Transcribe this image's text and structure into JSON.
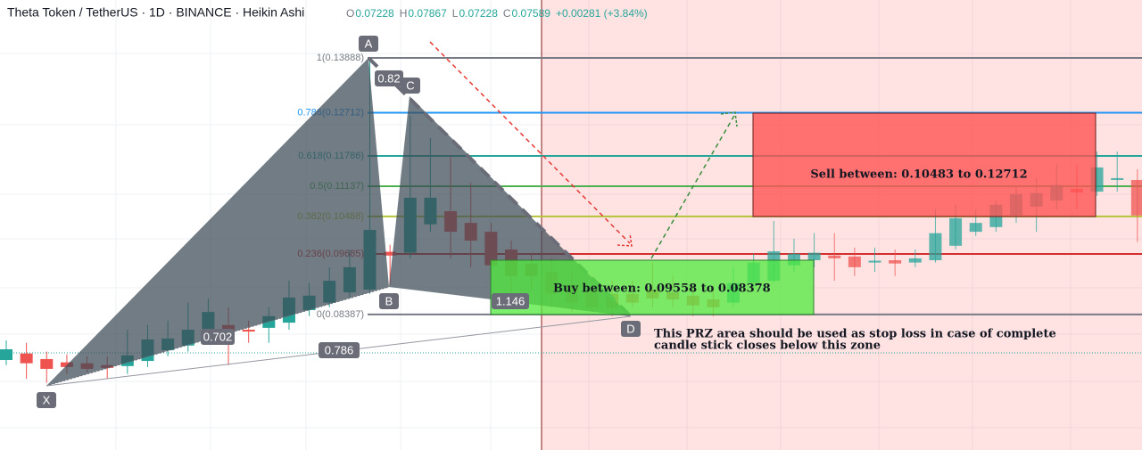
{
  "chart_data": {
    "type": "candlestick",
    "title": "Theta Token / TetherUS · 1D · BINANCE · Heikin Ashi",
    "legend_values": [
      {
        "key": "O",
        "value": "0.07228"
      },
      {
        "key": "H",
        "value": "0.07867"
      },
      {
        "key": "L",
        "value": "0.07228"
      },
      {
        "key": "C",
        "value": "0.07589"
      }
    ],
    "change": "+0.00281 (+3.84%)",
    "up_color": "#26a69a",
    "down_color": "#ef5350",
    "ylim": [
      0.0548,
      0.1513
    ],
    "ohlc": [
      [
        0.0741,
        0.0783,
        0.073,
        0.0764
      ],
      [
        0.0755,
        0.0778,
        0.0701,
        0.0734
      ],
      [
        0.0743,
        0.0759,
        0.0692,
        0.0722
      ],
      [
        0.0736,
        0.0753,
        0.0711,
        0.0726
      ],
      [
        0.0734,
        0.0749,
        0.0715,
        0.0722
      ],
      [
        0.073,
        0.0749,
        0.0701,
        0.0724
      ],
      [
        0.0728,
        0.0806,
        0.0711,
        0.0751
      ],
      [
        0.0739,
        0.0816,
        0.0726,
        0.0785
      ],
      [
        0.0762,
        0.0825,
        0.0749,
        0.0787
      ],
      [
        0.0772,
        0.0864,
        0.0759,
        0.0806
      ],
      [
        0.0802,
        0.0873,
        0.0787,
        0.0844
      ],
      [
        0.0816,
        0.0854,
        0.073,
        0.0802
      ],
      [
        0.0806,
        0.0825,
        0.0778,
        0.0802
      ],
      [
        0.081,
        0.0854,
        0.0778,
        0.0835
      ],
      [
        0.0821,
        0.0911,
        0.0806,
        0.0875
      ],
      [
        0.0848,
        0.0906,
        0.0835,
        0.0879
      ],
      [
        0.0864,
        0.094,
        0.0854,
        0.0911
      ],
      [
        0.0886,
        0.0978,
        0.0873,
        0.094
      ],
      [
        0.0892,
        0.1389,
        0.0883,
        0.102
      ],
      [
        0.0973,
        0.0988,
        0.0902,
        0.0965
      ],
      [
        0.0971,
        0.1265,
        0.0959,
        0.1089
      ],
      [
        0.1032,
        0.1217,
        0.1016,
        0.1089
      ],
      [
        0.106,
        0.1179,
        0.0959,
        0.1016
      ],
      [
        0.1035,
        0.1121,
        0.094,
        0.0997
      ],
      [
        0.1016,
        0.1035,
        0.0921,
        0.0944
      ],
      [
        0.0978,
        0.0997,
        0.0873,
        0.0921
      ],
      [
        0.0948,
        0.0969,
        0.0892,
        0.0921
      ],
      [
        0.093,
        0.0959,
        0.0854,
        0.0883
      ],
      [
        0.0902,
        0.094,
        0.0844,
        0.0864
      ],
      [
        0.0892,
        0.0921,
        0.0844,
        0.0854
      ],
      [
        0.0883,
        0.0911,
        0.0835,
        0.0854
      ],
      [
        0.0883,
        0.0911,
        0.0854,
        0.0864
      ],
      [
        0.0892,
        0.095,
        0.0854,
        0.0873
      ],
      [
        0.0886,
        0.0921,
        0.0854,
        0.0871
      ],
      [
        0.0879,
        0.0902,
        0.0835,
        0.0858
      ],
      [
        0.0871,
        0.0902,
        0.0835,
        0.0854
      ],
      [
        0.0864,
        0.094,
        0.0854,
        0.0906
      ],
      [
        0.0906,
        0.0969,
        0.0892,
        0.095
      ],
      [
        0.0911,
        0.1039,
        0.0906,
        0.0974
      ],
      [
        0.0944,
        0.1001,
        0.093,
        0.0969
      ],
      [
        0.0955,
        0.1013,
        0.094,
        0.0971
      ],
      [
        0.0965,
        0.1013,
        0.0911,
        0.0959
      ],
      [
        0.0963,
        0.0982,
        0.0921,
        0.094
      ],
      [
        0.095,
        0.0982,
        0.093,
        0.0954
      ],
      [
        0.0955,
        0.0978,
        0.0921,
        0.0948
      ],
      [
        0.095,
        0.0978,
        0.094,
        0.0959
      ],
      [
        0.0955,
        0.1064,
        0.095,
        0.1013
      ],
      [
        0.0986,
        0.1074,
        0.0978,
        0.1045
      ],
      [
        0.1016,
        0.1064,
        0.1007,
        0.1035
      ],
      [
        0.1026,
        0.1083,
        0.1016,
        0.1074
      ],
      [
        0.1051,
        0.1112,
        0.1035,
        0.1097
      ],
      [
        0.107,
        0.1131,
        0.1016,
        0.1099
      ],
      [
        0.1083,
        0.116,
        0.1064,
        0.1116
      ],
      [
        0.1108,
        0.116,
        0.1064,
        0.11
      ],
      [
        0.1102,
        0.1188,
        0.1093,
        0.1154
      ],
      [
        0.1127,
        0.1188,
        0.1102,
        0.1131
      ],
      [
        0.1127,
        0.115,
        0.0994,
        0.1051
      ]
    ],
    "fib_levels": [
      {
        "value": 0.13888,
        "label": "1(0.13888)",
        "color": "#787b86"
      },
      {
        "value": 0.12712,
        "label": "0.786(0.12712)",
        "color": "#2196f3"
      },
      {
        "value": 0.11786,
        "label": "0.618(0.11786)",
        "color": "#26a69a"
      },
      {
        "value": 0.11137,
        "label": "0.5(0.11137)",
        "color": "#4caf50"
      },
      {
        "value": 0.10488,
        "label": "0.382(0.10488)",
        "color": "#b5c33a"
      },
      {
        "value": 0.09685,
        "label": "0.236(0.09685)",
        "color": "#d32f2f"
      },
      {
        "value": 0.08387,
        "label": "0(0.08387)",
        "color": "#787b86"
      }
    ],
    "points": [
      "X",
      "A",
      "B",
      "C",
      "D"
    ],
    "ratios": [
      "0.82",
      "0.702",
      "0.786",
      "1.146"
    ],
    "sell_text": "Sell between: 0.10483 to 0.12712",
    "buy_text": "Buy between: 0.09558 to 0.08378",
    "note": [
      "This PRZ area should be used as stop loss in case of complete",
      "candle stick closes below this zone"
    ]
  }
}
